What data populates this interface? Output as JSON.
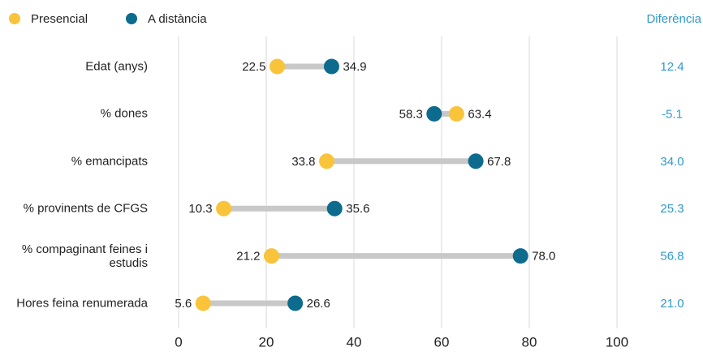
{
  "chart_data": {
    "type": "dumbbell",
    "categories": [
      "Edat (anys)",
      "% dones",
      "% emancipats",
      "% provinents de CFGS",
      "% compaginant feines i estudis",
      "Hores feina renumerada"
    ],
    "series": [
      {
        "name": "Presencial",
        "color": "#f9c33a",
        "values": [
          22.5,
          63.4,
          33.8,
          10.3,
          21.2,
          5.6
        ],
        "value_labels": [
          "22.5",
          "63.4",
          "33.8",
          "10.3",
          "21.2",
          "5.6"
        ]
      },
      {
        "name": "A distància",
        "color": "#0d6b8e",
        "values": [
          34.9,
          58.3,
          67.8,
          35.6,
          78.0,
          26.6
        ],
        "value_labels": [
          "34.9",
          "58.3",
          "67.8",
          "35.6",
          "78.0",
          "26.6"
        ]
      }
    ],
    "difference": {
      "title": "Diferència",
      "color": "#2f9acb",
      "values": [
        12.4,
        -5.1,
        34.0,
        25.3,
        56.8,
        21.0
      ],
      "value_labels": [
        "12.4",
        "-5.1",
        "34.0",
        "25.3",
        "56.8",
        "21.0"
      ]
    },
    "connector_color": "#c8c8c8",
    "xlim": [
      0,
      100
    ],
    "xticks": [
      0,
      20,
      40,
      60,
      80,
      100
    ],
    "grid": true
  }
}
